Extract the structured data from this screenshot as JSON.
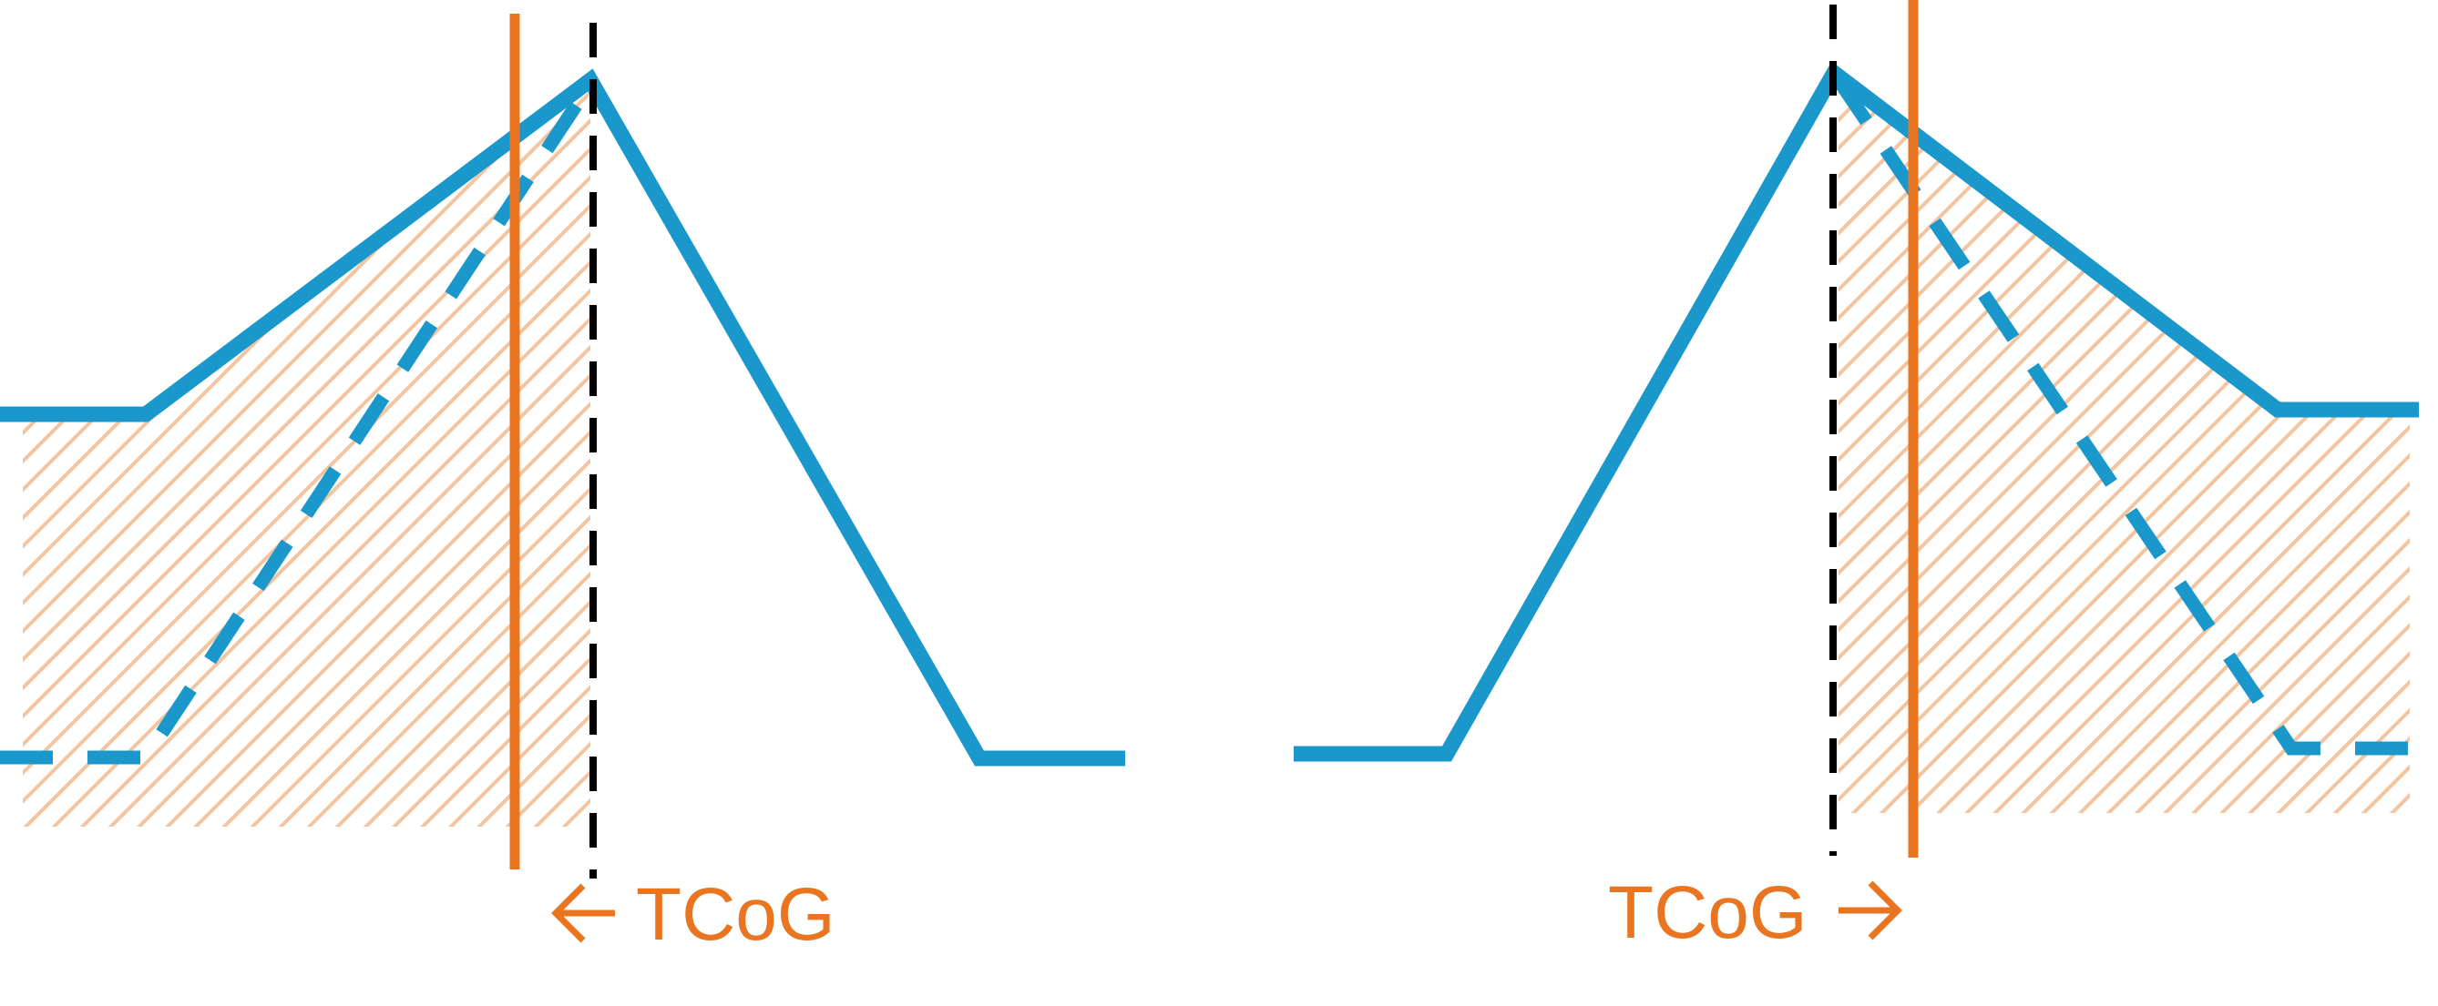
{
  "colors": {
    "curve": "#1a98cc",
    "marker": "#ea7520",
    "hatch": "#f3c4a0",
    "reference": "#000000",
    "background": "#ffffff"
  },
  "left_panel": {
    "label": "TCoG",
    "arrow_direction": "left"
  },
  "right_panel": {
    "label": "TCoG",
    "arrow_direction": "right"
  }
}
